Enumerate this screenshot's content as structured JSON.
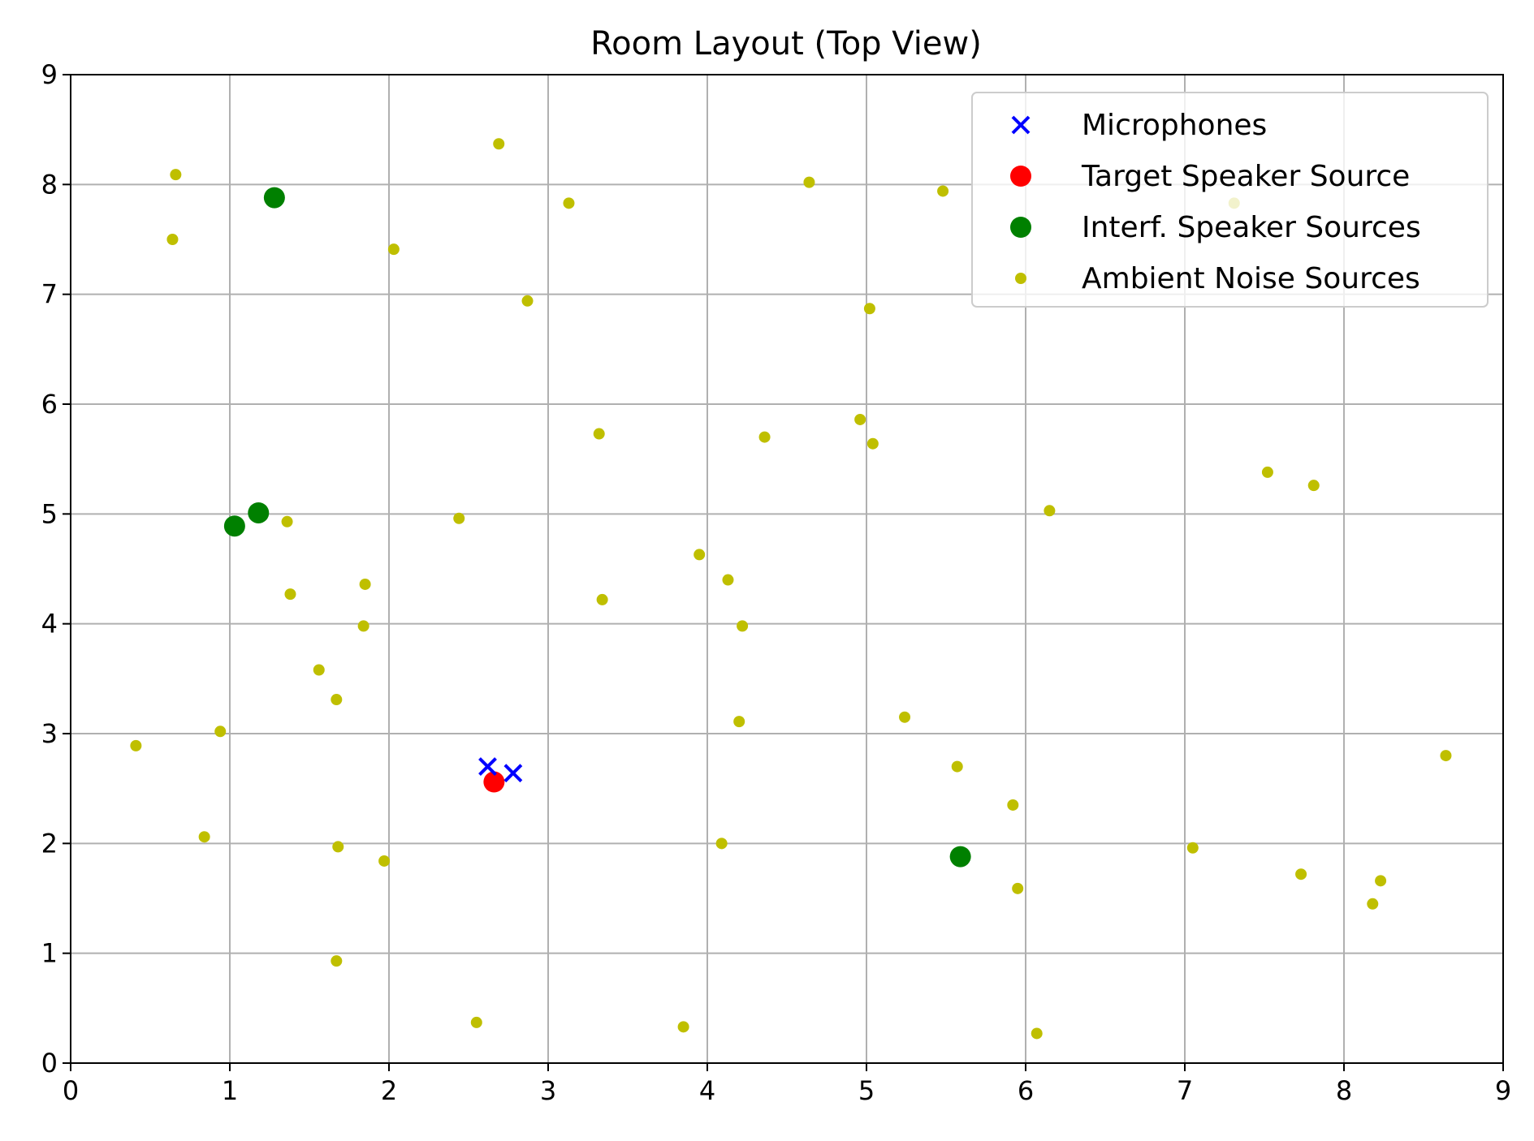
{
  "chart_data": {
    "type": "scatter",
    "title": "Room Layout (Top View)",
    "xlabel": "",
    "ylabel": "",
    "xlim": [
      0,
      9
    ],
    "ylim": [
      0,
      9
    ],
    "xticks": [
      "0",
      "1",
      "2",
      "3",
      "4",
      "5",
      "6",
      "7",
      "8",
      "9"
    ],
    "yticks": [
      "0",
      "1",
      "2",
      "3",
      "4",
      "5",
      "6",
      "7",
      "8",
      "9"
    ],
    "grid": true,
    "legend_position": "top-right",
    "series": [
      {
        "name": "Microphones",
        "marker": "x",
        "color": "#0000ff",
        "points": [
          [
            2.62,
            2.7
          ],
          [
            2.78,
            2.64
          ]
        ]
      },
      {
        "name": "Target Speaker Source",
        "marker": "circle-large",
        "color": "#ff0000",
        "points": [
          [
            2.66,
            2.56
          ]
        ]
      },
      {
        "name": "Interf. Speaker Sources",
        "marker": "circle-large",
        "color": "#008000",
        "points": [
          [
            1.28,
            7.88
          ],
          [
            1.18,
            5.01
          ],
          [
            1.03,
            4.89
          ],
          [
            5.59,
            1.88
          ]
        ]
      },
      {
        "name": "Ambient Noise Sources",
        "marker": "circle-small",
        "color": "#bfbf00",
        "points": [
          [
            0.66,
            8.09
          ],
          [
            0.64,
            7.5
          ],
          [
            2.69,
            8.37
          ],
          [
            3.13,
            7.83
          ],
          [
            2.03,
            7.41
          ],
          [
            2.87,
            6.94
          ],
          [
            4.64,
            8.02
          ],
          [
            5.48,
            7.94
          ],
          [
            5.02,
            6.87
          ],
          [
            7.31,
            7.83
          ],
          [
            3.32,
            5.73
          ],
          [
            4.36,
            5.7
          ],
          [
            4.96,
            5.86
          ],
          [
            5.04,
            5.64
          ],
          [
            7.52,
            5.38
          ],
          [
            7.81,
            5.26
          ],
          [
            6.15,
            5.03
          ],
          [
            1.36,
            4.93
          ],
          [
            2.44,
            4.96
          ],
          [
            3.95,
            4.63
          ],
          [
            4.13,
            4.4
          ],
          [
            1.38,
            4.27
          ],
          [
            1.85,
            4.36
          ],
          [
            3.34,
            4.22
          ],
          [
            1.84,
            3.98
          ],
          [
            4.22,
            3.98
          ],
          [
            1.56,
            3.58
          ],
          [
            1.67,
            3.31
          ],
          [
            0.94,
            3.02
          ],
          [
            0.41,
            2.89
          ],
          [
            4.2,
            3.11
          ],
          [
            5.24,
            3.15
          ],
          [
            5.57,
            2.7
          ],
          [
            8.64,
            2.8
          ],
          [
            5.92,
            2.35
          ],
          [
            0.84,
            2.06
          ],
          [
            1.68,
            1.97
          ],
          [
            1.97,
            1.84
          ],
          [
            4.09,
            2.0
          ],
          [
            7.05,
            1.96
          ],
          [
            7.73,
            1.72
          ],
          [
            8.23,
            1.66
          ],
          [
            5.95,
            1.59
          ],
          [
            8.18,
            1.45
          ],
          [
            1.67,
            0.93
          ],
          [
            2.55,
            0.37
          ],
          [
            3.85,
            0.33
          ],
          [
            6.07,
            0.27
          ]
        ]
      }
    ]
  }
}
